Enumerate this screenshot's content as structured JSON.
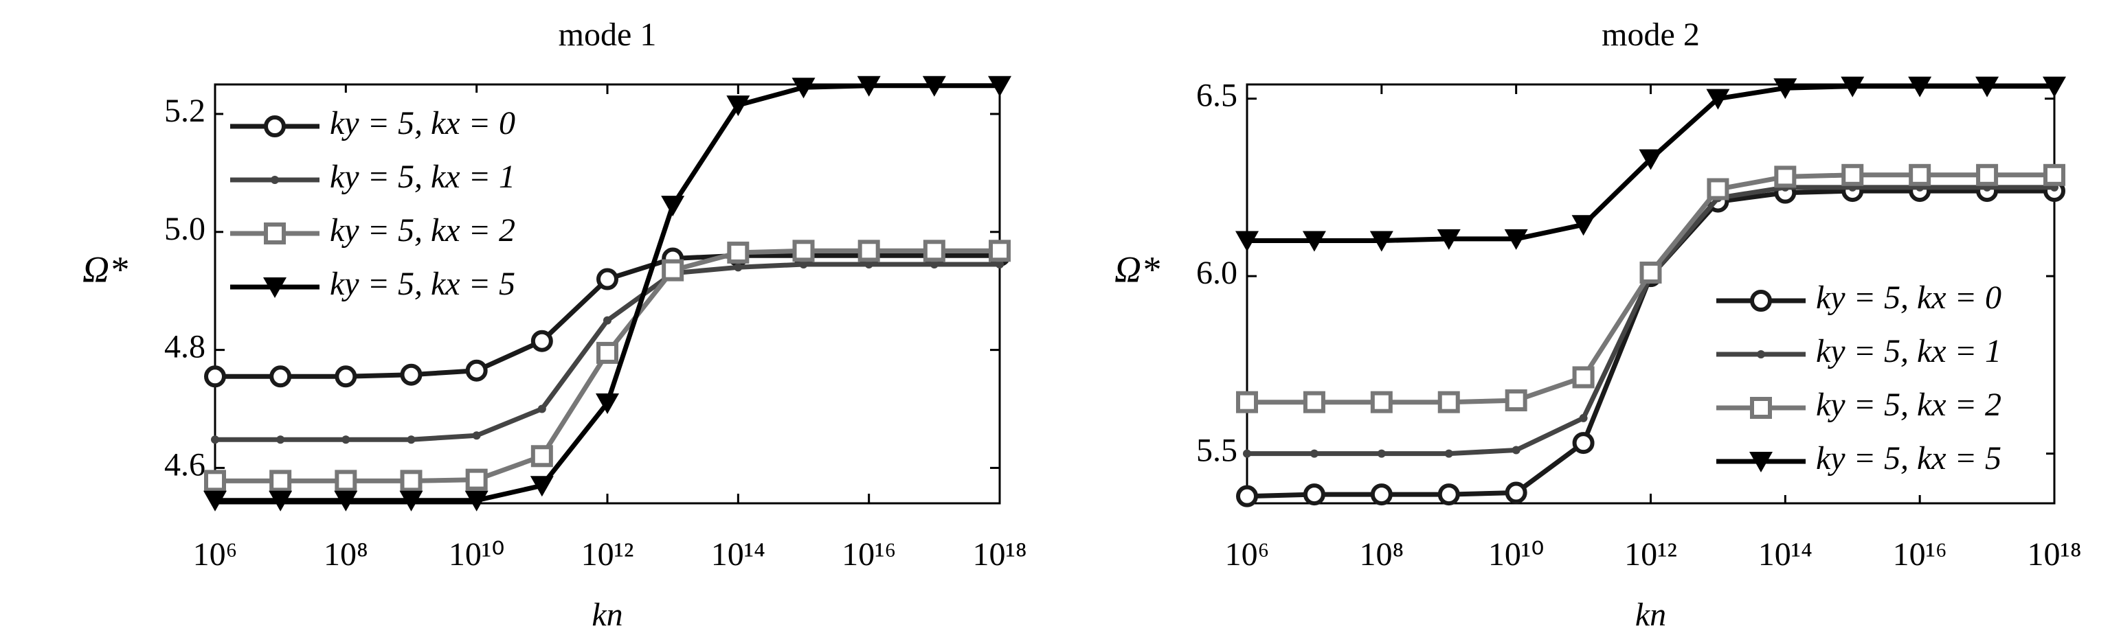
{
  "chart_data": [
    {
      "type": "line",
      "title": "mode 1",
      "xlabel": "kn",
      "ylabel": "Ω*",
      "xscale": "log",
      "x": [
        1000000.0,
        10000000.0,
        100000000.0,
        1000000000.0,
        10000000000.0,
        100000000000.0,
        1000000000000.0,
        10000000000000.0,
        100000000000000.0,
        1000000000000000.0,
        1e+16,
        1e+17,
        1e+18
      ],
      "xlim": [
        1000000.0,
        1e+18
      ],
      "xticks": [
        {
          "value": 1000000.0,
          "label": "10⁶"
        },
        {
          "value": 100000000.0,
          "label": "10⁸"
        },
        {
          "value": 10000000000.0,
          "label": "10¹⁰"
        },
        {
          "value": 1000000000000.0,
          "label": "10¹²"
        },
        {
          "value": 100000000000000.0,
          "label": "10¹⁴"
        },
        {
          "value": 1e+16,
          "label": "10¹⁶"
        },
        {
          "value": 1e+18,
          "label": "10¹⁸"
        }
      ],
      "ylim": [
        4.54,
        5.25
      ],
      "yticks": [
        4.6,
        4.8,
        {
          "value": 5,
          "label": "5.0"
        },
        5.2
      ],
      "legend": "upper left",
      "series": [
        {
          "name": "ky = 5, kx = 0",
          "color": "#1a1a1a",
          "marker": "circle",
          "values": [
            4.755,
            4.755,
            4.755,
            4.758,
            4.765,
            4.815,
            4.92,
            4.955,
            4.96,
            4.96,
            4.96,
            4.96,
            4.96
          ]
        },
        {
          "name": "ky = 5, kx = 1",
          "color": "#444444",
          "marker": "star",
          "values": [
            4.648,
            4.648,
            4.648,
            4.648,
            4.655,
            4.7,
            4.85,
            4.93,
            4.94,
            4.945,
            4.945,
            4.945,
            4.945
          ]
        },
        {
          "name": "ky = 5, kx = 2",
          "color": "#777777",
          "marker": "square",
          "values": [
            4.578,
            4.578,
            4.578,
            4.578,
            4.58,
            4.62,
            4.795,
            4.935,
            4.965,
            4.968,
            4.968,
            4.968,
            4.968
          ]
        },
        {
          "name": "ky = 5, kx = 5",
          "color": "#000000",
          "marker": "triangle-down",
          "values": [
            4.545,
            4.545,
            4.545,
            4.545,
            4.545,
            4.57,
            4.71,
            5.045,
            5.215,
            5.245,
            5.248,
            5.248,
            5.248
          ]
        }
      ]
    },
    {
      "type": "line",
      "title": "mode 2",
      "xlabel": "kn",
      "ylabel": "Ω*",
      "xscale": "log",
      "x": [
        1000000.0,
        10000000.0,
        100000000.0,
        1000000000.0,
        10000000000.0,
        100000000000.0,
        1000000000000.0,
        10000000000000.0,
        100000000000000.0,
        1000000000000000.0,
        1e+16,
        1e+17,
        1e+18
      ],
      "xlim": [
        1000000.0,
        1e+18
      ],
      "xticks": [
        {
          "value": 1000000.0,
          "label": "10⁶"
        },
        {
          "value": 100000000.0,
          "label": "10⁸"
        },
        {
          "value": 10000000000.0,
          "label": "10¹⁰"
        },
        {
          "value": 1000000000000.0,
          "label": "10¹²"
        },
        {
          "value": 100000000000000.0,
          "label": "10¹⁴"
        },
        {
          "value": 1e+16,
          "label": "10¹⁶"
        },
        {
          "value": 1e+18,
          "label": "10¹⁸"
        }
      ],
      "ylim": [
        5.36,
        6.54
      ],
      "yticks": [
        5.5,
        {
          "value": 6,
          "label": "6.0"
        },
        6.5
      ],
      "legend": "lower right",
      "series": [
        {
          "name": "ky = 5, kx = 0",
          "color": "#1a1a1a",
          "marker": "circle",
          "values": [
            5.38,
            5.385,
            5.385,
            5.385,
            5.39,
            5.53,
            6.0,
            6.21,
            6.235,
            6.24,
            6.24,
            6.24,
            6.24
          ]
        },
        {
          "name": "ky = 5, kx = 1",
          "color": "#444444",
          "marker": "star",
          "values": [
            5.5,
            5.5,
            5.5,
            5.5,
            5.51,
            5.6,
            6.0,
            6.22,
            6.25,
            6.25,
            6.25,
            6.25,
            6.25
          ]
        },
        {
          "name": "ky = 5, kx = 2",
          "color": "#777777",
          "marker": "square",
          "values": [
            5.645,
            5.645,
            5.645,
            5.645,
            5.65,
            5.715,
            6.01,
            6.245,
            6.28,
            6.285,
            6.285,
            6.285,
            6.285
          ]
        },
        {
          "name": "ky = 5, kx = 5",
          "color": "#000000",
          "marker": "triangle-down",
          "values": [
            6.1,
            6.1,
            6.1,
            6.105,
            6.105,
            6.145,
            6.33,
            6.5,
            6.53,
            6.535,
            6.535,
            6.535,
            6.535
          ]
        }
      ]
    }
  ]
}
